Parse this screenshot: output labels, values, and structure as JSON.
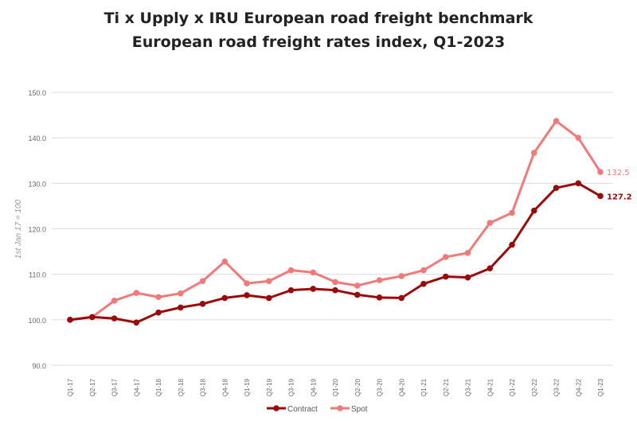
{
  "chart_data": {
    "type": "line",
    "title": "Ti x Upply x IRU European road freight benchmark",
    "subtitle": "European road freight rates index, Q1-2023",
    "ylabel": "1st Jan 17 = 100",
    "xlabel": "",
    "ylim": [
      90,
      150
    ],
    "yticks": [
      "90.0",
      "100.0",
      "110.0",
      "120.0",
      "130.0",
      "140.0",
      "150.0"
    ],
    "grid": true,
    "legend": "bottom",
    "categories": [
      "Q1-17",
      "Q2-17",
      "Q3-17",
      "Q4-17",
      "Q1-18",
      "Q2-18",
      "Q3-18",
      "Q4-18",
      "Q1-19",
      "Q2-19",
      "Q3-19",
      "Q4-19",
      "Q1-20",
      "Q2-20",
      "Q3-20",
      "Q4-20",
      "Q1-21",
      "Q2-21",
      "Q3-21",
      "Q4-21",
      "Q1-22",
      "Q2-22",
      "Q3-22",
      "Q4-22",
      "Q1-23"
    ],
    "series": [
      {
        "name": "Contract",
        "color": "#9b0a0a",
        "end_label": "127.2",
        "values": [
          100,
          100.6,
          100.3,
          99.4,
          101.6,
          102.7,
          103.5,
          104.8,
          105.4,
          104.8,
          106.5,
          106.8,
          106.5,
          105.5,
          104.9,
          104.8,
          107.9,
          109.5,
          109.3,
          111.3,
          116.5,
          124.0,
          129.0,
          130.0,
          127.2
        ]
      },
      {
        "name": "Spot",
        "color": "#f07a7a",
        "end_label": "132.5",
        "values": [
          100,
          100.6,
          104.2,
          105.9,
          105.0,
          105.8,
          108.5,
          112.8,
          108.0,
          108.5,
          110.9,
          110.4,
          108.3,
          107.5,
          108.7,
          109.6,
          110.9,
          113.8,
          114.7,
          121.3,
          123.5,
          136.7,
          143.7,
          140.0,
          132.5
        ]
      }
    ]
  }
}
